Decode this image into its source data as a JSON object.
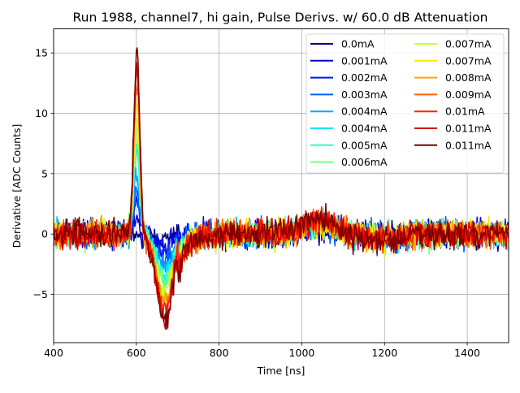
{
  "chart_data": {
    "type": "line",
    "title": "Run 1988, channel7, hi gain, Pulse Derivs. w/ 60.0 dB Attenuation",
    "xlabel": "Time [ns]",
    "ylabel": "Derivative [ADC Counts]",
    "xlim": [
      400,
      1500
    ],
    "ylim": [
      -9.0,
      17.0
    ],
    "x_ticks": [
      400,
      600,
      800,
      1000,
      1200,
      1400
    ],
    "x_tick_labels": [
      "400",
      "600",
      "800",
      "1000",
      "1200",
      "1400"
    ],
    "y_ticks": [
      -5,
      0,
      5,
      10,
      15
    ],
    "y_tick_labels": [
      "−5",
      "0",
      "5",
      "10",
      "15"
    ],
    "grid": true,
    "legend_location": "upper right",
    "legend_columns": 2,
    "series": [
      {
        "name": "0.0mA",
        "color": "#000080",
        "peak": 0.0,
        "trough": -0.3,
        "late": 0.4
      },
      {
        "name": "0.001mA",
        "color": "#0000d5",
        "peak": 1.4,
        "trough": -1.0,
        "late": 0.5
      },
      {
        "name": "0.002mA",
        "color": "#0010ff",
        "peak": 2.6,
        "trough": -1.6,
        "late": 0.6
      },
      {
        "name": "0.003mA",
        "color": "#0060ff",
        "peak": 3.9,
        "trough": -2.2,
        "late": 0.7
      },
      {
        "name": "0.004mA",
        "color": "#00a8ff",
        "peak": 5.2,
        "trough": -2.8,
        "late": 0.8
      },
      {
        "name": "0.004mA",
        "color": "#00e4f8",
        "peak": 6.5,
        "trough": -3.3,
        "late": 0.85
      },
      {
        "name": "0.005mA",
        "color": "#2cffca",
        "peak": 7.6,
        "trough": -3.8,
        "late": 0.9
      },
      {
        "name": "0.006mA",
        "color": "#7dff7a",
        "peak": 8.7,
        "trough": -4.3,
        "late": 0.95
      },
      {
        "name": "0.007mA",
        "color": "#caff2c",
        "peak": 9.8,
        "trough": -4.8,
        "late": 1.0
      },
      {
        "name": "0.007mA",
        "color": "#ffe600",
        "peak": 10.8,
        "trough": -5.2,
        "late": 1.05
      },
      {
        "name": "0.008mA",
        "color": "#ffa400",
        "peak": 11.8,
        "trough": -5.6,
        "late": 1.1
      },
      {
        "name": "0.009mA",
        "color": "#ff6000",
        "peak": 12.8,
        "trough": -6.0,
        "late": 1.15
      },
      {
        "name": "0.01mA",
        "color": "#ff2000",
        "peak": 13.7,
        "trough": -6.4,
        "late": 1.2
      },
      {
        "name": "0.011mA",
        "color": "#d40000",
        "peak": 14.6,
        "trough": -6.8,
        "late": 1.25
      },
      {
        "name": "0.011mA",
        "color": "#800000",
        "peak": 15.5,
        "trough": -7.2,
        "late": 1.3
      }
    ]
  }
}
